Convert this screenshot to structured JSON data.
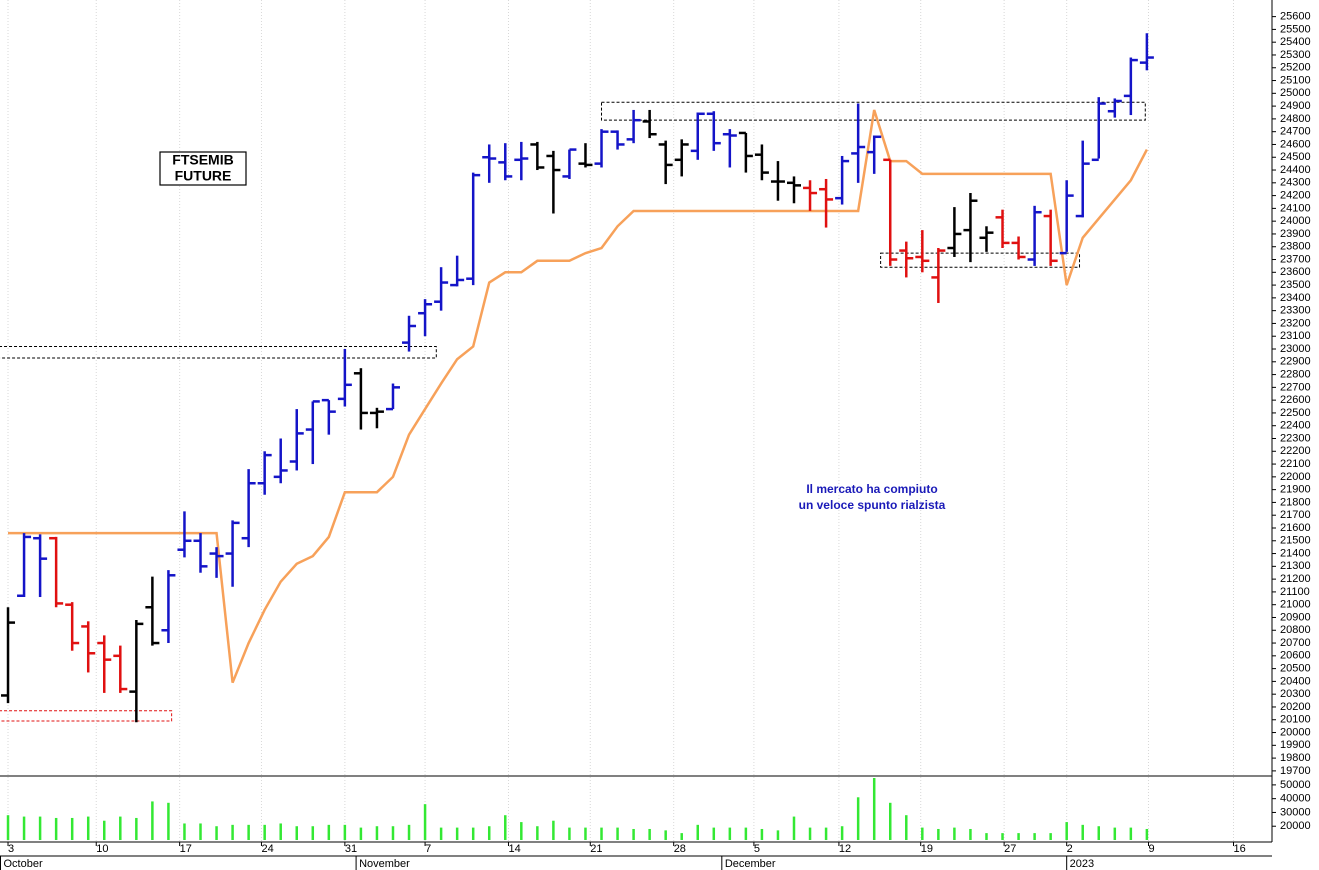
{
  "chart_data": [
    {
      "type": "ohlc",
      "title_lines": [
        "FTSEMIB",
        "FUTURE"
      ],
      "annotation_lines": [
        "Il mercato ha compiuto",
        "un veloce spunto rialzista"
      ],
      "xlim": [
        -0.5,
        78.8
      ],
      "ylim": [
        19660,
        25730
      ],
      "yticks": [
        19700,
        19800,
        19900,
        20000,
        20100,
        20200,
        20300,
        20400,
        20500,
        20600,
        20700,
        20800,
        20900,
        21000,
        21100,
        21200,
        21300,
        21400,
        21500,
        21600,
        21700,
        21800,
        21900,
        22000,
        22100,
        22200,
        22300,
        22400,
        22500,
        22600,
        22700,
        22800,
        22900,
        23000,
        23100,
        23200,
        23300,
        23400,
        23500,
        23600,
        23700,
        23800,
        23900,
        24000,
        24100,
        24200,
        24300,
        24400,
        24500,
        24600,
        24700,
        24800,
        24900,
        25000,
        25100,
        25200,
        25300,
        25400,
        25500,
        25600
      ],
      "x": [
        0,
        1,
        2,
        3,
        4,
        5,
        6,
        7,
        8,
        9,
        10,
        11,
        12,
        13,
        14,
        15,
        16,
        17,
        18,
        19,
        20,
        21,
        22,
        23,
        24,
        25,
        26,
        27,
        28,
        29,
        30,
        31,
        32,
        33,
        34,
        35,
        36,
        37,
        38,
        39,
        40,
        41,
        42,
        43,
        44,
        45,
        46,
        47,
        48,
        49,
        50,
        51,
        52,
        53,
        54,
        55,
        56,
        57,
        58,
        59,
        60,
        61,
        62,
        63,
        64,
        65,
        66,
        67,
        68,
        69,
        70,
        71
      ],
      "open": [
        20290,
        21070,
        21520,
        21520,
        21000,
        20830,
        20700,
        20600,
        20320,
        20980,
        20800,
        21430,
        21500,
        21400,
        21400,
        21520,
        21950,
        22000,
        22120,
        22370,
        22600,
        22610,
        22810,
        22500,
        22530,
        23050,
        23280,
        23370,
        23500,
        23550,
        24500,
        24460,
        24480,
        24600,
        24510,
        24350,
        24450,
        24450,
        24700,
        24640,
        24780,
        24600,
        24480,
        24550,
        24840,
        24680,
        24690,
        24520,
        24310,
        24300,
        24260,
        24250,
        24180,
        24530,
        24540,
        24480,
        23770,
        23720,
        23560,
        23790,
        23930,
        23870,
        24030,
        23830,
        23700,
        24040,
        23750,
        24040,
        24480,
        24860,
        24980,
        25240
      ],
      "high": [
        20980,
        21560,
        21550,
        21530,
        21020,
        20870,
        20760,
        20680,
        20880,
        21220,
        21270,
        21730,
        21560,
        21450,
        21660,
        22060,
        22200,
        22300,
        22530,
        22590,
        22600,
        23000,
        22850,
        22540,
        22730,
        23260,
        23390,
        23640,
        23730,
        24380,
        24600,
        24610,
        24620,
        24620,
        24550,
        24560,
        24610,
        24720,
        24710,
        24870,
        24870,
        24630,
        24640,
        24850,
        24860,
        24720,
        24690,
        24600,
        24470,
        24350,
        24320,
        24330,
        24510,
        24920,
        24670,
        24480,
        23840,
        23930,
        23790,
        24110,
        24220,
        23960,
        24090,
        23880,
        24120,
        24090,
        24320,
        24630,
        24970,
        24960,
        25280,
        25470
      ],
      "low": [
        20230,
        21060,
        21060,
        20980,
        20640,
        20470,
        20310,
        20310,
        20080,
        20680,
        20700,
        21370,
        21250,
        21210,
        21140,
        21450,
        21860,
        21950,
        22050,
        22100,
        22330,
        22550,
        22370,
        22380,
        22530,
        22980,
        23100,
        23300,
        23490,
        23500,
        24300,
        24320,
        24320,
        24400,
        24060,
        24330,
        24420,
        24420,
        24560,
        24610,
        24650,
        24290,
        24350,
        24480,
        24550,
        24420,
        24380,
        24320,
        24160,
        24140,
        24080,
        23950,
        24130,
        24300,
        24370,
        23650,
        23560,
        23600,
        23360,
        23720,
        23680,
        23760,
        23790,
        23700,
        23650,
        23650,
        23760,
        24030,
        24490,
        24810,
        24830,
        25180
      ],
      "close": [
        20860,
        21530,
        21360,
        21010,
        20700,
        20620,
        20570,
        20340,
        20850,
        20700,
        21230,
        21500,
        21300,
        21380,
        21640,
        21950,
        22170,
        22050,
        22340,
        22590,
        22510,
        22720,
        22500,
        22510,
        22700,
        23180,
        23350,
        23520,
        23540,
        24360,
        24490,
        24350,
        24490,
        24420,
        24400,
        24560,
        24440,
        24700,
        24600,
        24790,
        24680,
        24440,
        24600,
        24840,
        24610,
        24670,
        24510,
        24380,
        24310,
        24280,
        24220,
        24170,
        24470,
        24580,
        24660,
        23700,
        23710,
        23690,
        23770,
        23900,
        24160,
        23910,
        23830,
        23720,
        24070,
        23690,
        24200,
        24450,
        24920,
        24940,
        25260,
        25280
      ],
      "bar_colors": [
        "#000000",
        "#1414c8",
        "#1414c8",
        "#e01010",
        "#e01010",
        "#e01010",
        "#e01010",
        "#e01010",
        "#000000",
        "#000000",
        "#1414c8",
        "#1414c8",
        "#1414c8",
        "#1414c8",
        "#1414c8",
        "#1414c8",
        "#1414c8",
        "#1414c8",
        "#1414c8",
        "#1414c8",
        "#1414c8",
        "#1414c8",
        "#000000",
        "#000000",
        "#1414c8",
        "#1414c8",
        "#1414c8",
        "#1414c8",
        "#1414c8",
        "#1414c8",
        "#1414c8",
        "#1414c8",
        "#1414c8",
        "#000000",
        "#000000",
        "#1414c8",
        "#000000",
        "#1414c8",
        "#1414c8",
        "#1414c8",
        "#000000",
        "#000000",
        "#000000",
        "#1414c8",
        "#1414c8",
        "#1414c8",
        "#000000",
        "#000000",
        "#000000",
        "#000000",
        "#e01010",
        "#e01010",
        "#1414c8",
        "#1414c8",
        "#1414c8",
        "#e01010",
        "#e01010",
        "#e01010",
        "#e01010",
        "#000000",
        "#000000",
        "#000000",
        "#e01010",
        "#e01010",
        "#1414c8",
        "#e01010",
        "#1414c8",
        "#1414c8",
        "#1414c8",
        "#1414c8",
        "#1414c8",
        "#1414c8"
      ],
      "line": {
        "color": "#f7a15a",
        "values": [
          21560,
          21560,
          21560,
          21560,
          21560,
          21560,
          21560,
          21560,
          21560,
          21560,
          21560,
          21560,
          21560,
          21560,
          20390,
          20700,
          20960,
          21180,
          21320,
          21380,
          21530,
          21880,
          21880,
          21880,
          22000,
          22330,
          22530,
          22730,
          22920,
          23020,
          23520,
          23600,
          23600,
          23690,
          23690,
          23690,
          23750,
          23790,
          23960,
          24080,
          24080,
          24080,
          24080,
          24080,
          24080,
          24080,
          24080,
          24080,
          24080,
          24080,
          24080,
          24080,
          24080,
          24080,
          24870,
          24470,
          24470,
          24370,
          24370,
          24370,
          24370,
          24370,
          24370,
          24370,
          24370,
          24370,
          23500,
          23870,
          24020,
          24170,
          24320,
          24560
        ]
      },
      "zones": [
        {
          "x": [
            -0.56,
            26.7
          ],
          "y": [
            22930,
            23020
          ],
          "color": "#000000"
        },
        {
          "x": [
            -0.56,
            10.2
          ],
          "y": [
            20090,
            20170
          ],
          "color": "#e01010"
        },
        {
          "x": [
            37.0,
            70.9
          ],
          "y": [
            24790,
            24930
          ],
          "color": "#000000"
        },
        {
          "x": [
            54.4,
            66.8
          ],
          "y": [
            23640,
            23750
          ],
          "color": "#000000"
        }
      ]
    },
    {
      "type": "bar",
      "color": "#33e833",
      "xlim": [
        -0.5,
        78.8
      ],
      "ylim": [
        10000,
        56450
      ],
      "yticks": [
        20000,
        30000,
        40000,
        50000
      ],
      "x": [
        0,
        1,
        2,
        3,
        4,
        5,
        6,
        7,
        8,
        9,
        10,
        11,
        12,
        13,
        14,
        15,
        16,
        17,
        18,
        19,
        20,
        21,
        22,
        23,
        24,
        25,
        26,
        27,
        28,
        29,
        30,
        31,
        32,
        33,
        34,
        35,
        36,
        37,
        38,
        39,
        40,
        41,
        42,
        43,
        44,
        45,
        46,
        47,
        48,
        49,
        50,
        51,
        52,
        53,
        54,
        55,
        56,
        57,
        58,
        59,
        60,
        61,
        62,
        63,
        64,
        65,
        66,
        67,
        68,
        69,
        70,
        71
      ],
      "values": [
        28000,
        27000,
        27000,
        26000,
        26000,
        27000,
        24000,
        27000,
        26000,
        38000,
        37000,
        22000,
        22000,
        20000,
        21000,
        21000,
        21000,
        22000,
        20000,
        20000,
        21000,
        21000,
        19000,
        20000,
        20000,
        21000,
        36000,
        19000,
        19000,
        19000,
        20000,
        28000,
        23000,
        20000,
        24000,
        19000,
        19000,
        19000,
        19000,
        18000,
        18000,
        17000,
        15000,
        21000,
        19000,
        19000,
        19000,
        18000,
        17000,
        27000,
        19000,
        19000,
        20000,
        41000,
        55000,
        37000,
        28000,
        19000,
        18000,
        19000,
        18000,
        15000,
        15000,
        15000,
        15000,
        15000,
        23000,
        21000,
        20000,
        19000,
        19000,
        18000
      ],
      "xticks": [
        {
          "value": 0,
          "label": "3"
        },
        {
          "value": 5.5,
          "label": "10"
        },
        {
          "value": 10.7,
          "label": "17"
        },
        {
          "value": 15.8,
          "label": "24"
        },
        {
          "value": 21,
          "label": "31"
        },
        {
          "value": 26,
          "label": "7"
        },
        {
          "value": 31.2,
          "label": "14"
        },
        {
          "value": 36.3,
          "label": "21"
        },
        {
          "value": 41.5,
          "label": "28"
        },
        {
          "value": 46.5,
          "label": "5"
        },
        {
          "value": 51.8,
          "label": "12"
        },
        {
          "value": 56.9,
          "label": "19"
        },
        {
          "value": 62.1,
          "label": "27"
        },
        {
          "value": 66,
          "label": "2"
        },
        {
          "value": 71.1,
          "label": "9"
        },
        {
          "value": 76.4,
          "label": "16"
        }
      ],
      "months": [
        {
          "value": -0.5,
          "label": "October"
        },
        {
          "value": 21.7,
          "label": "November"
        },
        {
          "value": 44.5,
          "label": "December"
        },
        {
          "value": 66,
          "label": "2023"
        }
      ]
    }
  ]
}
